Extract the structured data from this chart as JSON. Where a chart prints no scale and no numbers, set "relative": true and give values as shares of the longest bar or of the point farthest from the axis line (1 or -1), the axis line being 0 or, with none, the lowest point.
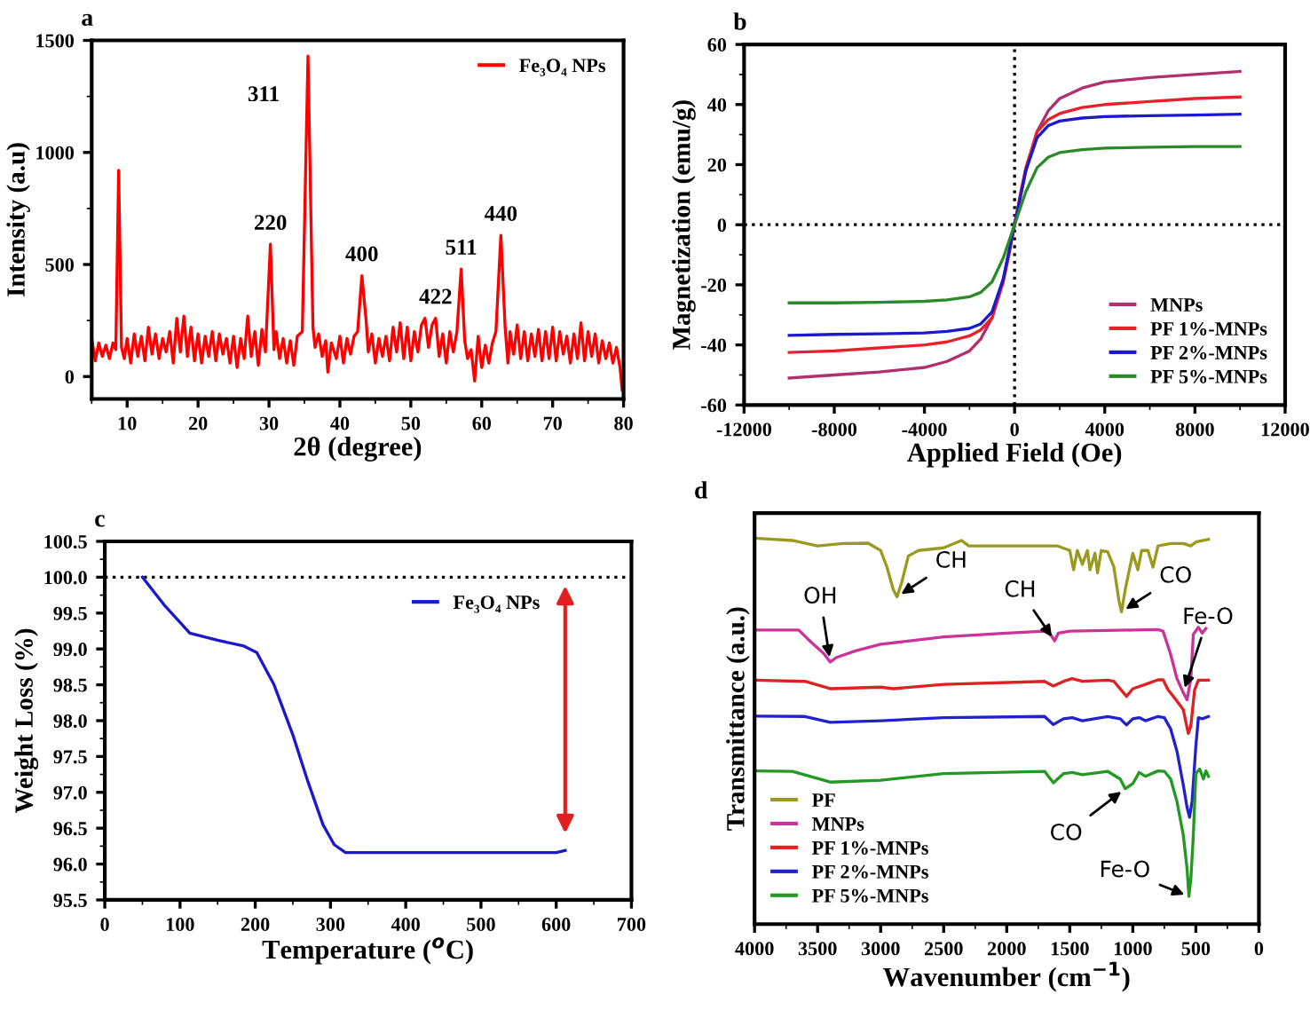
{
  "chart_data": [
    {
      "type": "line",
      "title": "a",
      "xlabel": "2θ (degree)",
      "ylabel": "Intensity (a.u)",
      "xlim": [
        5,
        80
      ],
      "xticks": [
        10,
        20,
        30,
        40,
        50,
        60,
        70,
        80
      ],
      "ylim": [
        -100,
        1500
      ],
      "yticks": [
        0,
        500,
        1000,
        1500
      ],
      "legend": "top right",
      "grid": false,
      "series": [
        {
          "name": "Fe₃O₄ NPs",
          "color": "#ff0000",
          "x": [
            5,
            5.5,
            6,
            6.5,
            7,
            7.5,
            8,
            8.4,
            8.8,
            9.2,
            9.6,
            10,
            10.5,
            11,
            11.5,
            12,
            12.5,
            13,
            13.5,
            14,
            14.5,
            15,
            15.5,
            16,
            16.5,
            17,
            17.5,
            18,
            18.5,
            19,
            19.5,
            20,
            20.5,
            21,
            21.5,
            22,
            22.5,
            23,
            23.5,
            24,
            24.5,
            25,
            25.5,
            26,
            26.5,
            27,
            27.5,
            28,
            28.5,
            29,
            29.5,
            30.2,
            30.7,
            31,
            31.5,
            32,
            32.5,
            33,
            33.5,
            34,
            34.7,
            35.5,
            36.2,
            36.5,
            37,
            37.5,
            38,
            38.3,
            38.8,
            39.5,
            40,
            40.5,
            41,
            41.5,
            42,
            42.5,
            43.1,
            43.7,
            44,
            44.5,
            45,
            45.5,
            46,
            46.5,
            47,
            47.5,
            48,
            48.5,
            49,
            49.5,
            50,
            50.5,
            51,
            51.5,
            52,
            52.5,
            53,
            53.5,
            54,
            54.5,
            55,
            55.5,
            56,
            56.5,
            57.1,
            57.6,
            58,
            58.5,
            59,
            59.5,
            60,
            60.5,
            61,
            61.5,
            62,
            62.7,
            63.3,
            63.7,
            64,
            64.5,
            65,
            65.5,
            66,
            66.5,
            67,
            67.5,
            68,
            68.5,
            69,
            69.5,
            70,
            70.5,
            71,
            71.5,
            72,
            72.5,
            73,
            73.5,
            74,
            74.5,
            75,
            75.5,
            76,
            76.5,
            77,
            77.5,
            78,
            78.5,
            79,
            79.5,
            79.8
          ],
          "values": [
            170,
            70,
            150,
            90,
            140,
            80,
            150,
            120,
            920,
            130,
            80,
            170,
            60,
            190,
            90,
            180,
            70,
            220,
            100,
            190,
            80,
            170,
            110,
            200,
            60,
            260,
            110,
            270,
            90,
            220,
            70,
            190,
            60,
            180,
            90,
            200,
            70,
            190,
            100,
            170,
            60,
            180,
            40,
            170,
            80,
            270,
            90,
            200,
            50,
            210,
            110,
            590,
            120,
            200,
            80,
            170,
            60,
            160,
            50,
            180,
            200,
            1430,
            220,
            130,
            190,
            90,
            160,
            20,
            150,
            80,
            180,
            60,
            170,
            100,
            180,
            200,
            450,
            250,
            110,
            190,
            60,
            170,
            90,
            180,
            70,
            220,
            110,
            240,
            80,
            220,
            70,
            200,
            110,
            230,
            260,
            130,
            230,
            260,
            90,
            190,
            60,
            200,
            110,
            200,
            480,
            160,
            80,
            120,
            -20,
            180,
            40,
            140,
            60,
            150,
            200,
            630,
            220,
            60,
            200,
            100,
            230,
            80,
            200,
            70,
            190,
            90,
            210,
            70,
            200,
            80,
            220,
            70,
            200,
            100,
            180,
            60,
            190,
            80,
            240,
            70,
            200,
            90,
            190,
            60,
            160,
            80,
            150,
            60,
            130,
            40,
            -60
          ]
        }
      ],
      "annotations": [
        {
          "text": "220",
          "x": 30.2,
          "y": 590
        },
        {
          "text": "311",
          "x": 35.5,
          "y": 1430
        },
        {
          "text": "400",
          "x": 43.1,
          "y": 450
        },
        {
          "text": "422",
          "x": 53.5,
          "y": 260
        },
        {
          "text": "511",
          "x": 57.1,
          "y": 480
        },
        {
          "text": "440",
          "x": 62.7,
          "y": 630
        }
      ]
    },
    {
      "type": "line",
      "title": "b",
      "xlabel": "Applied Field (Oe)",
      "ylabel": "Magnetization (emu/g)",
      "xlim": [
        -12000,
        12000
      ],
      "xticks": [
        -12000,
        -8000,
        -4000,
        0,
        4000,
        8000,
        12000
      ],
      "ylim": [
        -60,
        60
      ],
      "yticks": [
        -60,
        -40,
        -20,
        0,
        20,
        40,
        60
      ],
      "legend": "bottom right",
      "grid": false,
      "ref_lines": [
        {
          "axis": "x",
          "value": 0,
          "color": "#000000",
          "line_style": "dotted"
        },
        {
          "axis": "y",
          "value": 0,
          "color": "#000000",
          "line_style": "dotted"
        }
      ],
      "series": [
        {
          "name": "MNPs",
          "color": "#b0306e",
          "x": [
            -10000,
            -8000,
            -6000,
            -4000,
            -3000,
            -2000,
            -1500,
            -1000,
            -500,
            -250,
            0,
            250,
            500,
            1000,
            1500,
            2000,
            3000,
            4000,
            6000,
            8000,
            10000
          ],
          "values": [
            -51,
            -50,
            -49,
            -47.5,
            -45.5,
            -42,
            -38,
            -31,
            -18,
            -9,
            0,
            9,
            18,
            31,
            38,
            42,
            45.5,
            47.5,
            49,
            50,
            51
          ]
        },
        {
          "name": "PF 1%-MNPs",
          "color": "#e8202a",
          "x": [
            -10000,
            -8000,
            -6000,
            -4000,
            -3000,
            -2000,
            -1500,
            -1000,
            -500,
            -250,
            0,
            250,
            500,
            1000,
            1500,
            2000,
            3000,
            4000,
            6000,
            8000,
            10000
          ],
          "values": [
            -42.5,
            -42,
            -41,
            -40,
            -39,
            -37,
            -35,
            -31,
            -19,
            -10,
            0,
            10,
            19,
            31,
            35,
            37,
            39,
            40,
            41,
            42,
            42.5
          ]
        },
        {
          "name": "PF 2%-MNPs",
          "color": "#1a1acc",
          "x": [
            -10000,
            -8000,
            -6000,
            -4000,
            -3000,
            -2000,
            -1500,
            -1000,
            -500,
            -250,
            0,
            250,
            500,
            1000,
            1500,
            2000,
            3000,
            4000,
            6000,
            8000,
            10000
          ],
          "values": [
            -36.8,
            -36.5,
            -36.3,
            -36,
            -35.5,
            -34.5,
            -33,
            -29,
            -18,
            -9,
            0,
            9,
            18,
            29,
            33,
            34.5,
            35.5,
            36,
            36.3,
            36.5,
            36.8
          ]
        },
        {
          "name": "PF 5%-MNPs",
          "color": "#2a8a2a",
          "x": [
            -10000,
            -8000,
            -6000,
            -4000,
            -3000,
            -2000,
            -1500,
            -1000,
            -500,
            -250,
            0,
            250,
            500,
            1000,
            1500,
            2000,
            3000,
            4000,
            6000,
            8000,
            10000
          ],
          "values": [
            -26,
            -26,
            -25.8,
            -25.5,
            -25,
            -24,
            -22.5,
            -19,
            -11,
            -5.5,
            0,
            5.5,
            11,
            19,
            22.5,
            24,
            25,
            25.5,
            25.8,
            26,
            26
          ]
        }
      ]
    },
    {
      "type": "line",
      "title": "c",
      "xlabel": "Temperature ($^{o}$C)",
      "ylabel": "Weight Loss (%)",
      "xlim": [
        0,
        700
      ],
      "xticks": [
        0,
        100,
        200,
        300,
        400,
        500,
        600,
        700
      ],
      "ylim": [
        95.5,
        100.5
      ],
      "yticks": [
        {
          "value": 95.5,
          "label": "95.5"
        },
        {
          "value": 96,
          "label": "96.0"
        },
        {
          "value": 96.5,
          "label": "96.5"
        },
        {
          "value": 97,
          "label": "97.0"
        },
        {
          "value": 97.5,
          "label": "97.5"
        },
        {
          "value": 98,
          "label": "98.0"
        },
        {
          "value": 98.5,
          "label": "98.5"
        },
        {
          "value": 99,
          "label": "99.0"
        },
        {
          "value": 99.5,
          "label": "99.5"
        },
        {
          "value": 100,
          "label": "100.0"
        },
        {
          "value": 100.5,
          "label": "100.5"
        }
      ],
      "legend": "top right",
      "grid": false,
      "ref_lines": [
        {
          "axis": "y",
          "value": 100,
          "color": "#000000",
          "line_style": "dotted"
        }
      ],
      "series": [
        {
          "name": "Fe₃O₄ NPs",
          "color": "#1a1acc",
          "x": [
            50,
            80,
            113,
            150,
            185,
            202,
            225,
            250,
            270,
            290,
            305,
            320,
            400,
            500,
            600,
            612
          ],
          "values": [
            100,
            99.6,
            99.22,
            99.12,
            99.04,
            98.95,
            98.5,
            97.8,
            97.15,
            96.55,
            96.27,
            96.16,
            96.16,
            96.16,
            96.16,
            96.19
          ]
        }
      ]
    },
    {
      "type": "line",
      "title": "d",
      "xlabel": "Wavenumber (cm$^{−1}$)",
      "ylabel": "Transmittance (a.u.)",
      "relative": true,
      "xlim": [
        4000,
        0
      ],
      "xticks": [
        4000,
        3500,
        3000,
        2500,
        2000,
        1500,
        1000,
        500,
        0
      ],
      "tick_labels": "x",
      "legend": "bottom left",
      "grid": false,
      "series": [
        {
          "name": "PF",
          "color": "#9a9a20",
          "x": [
            4000,
            3700,
            3500,
            3300,
            3100,
            3000,
            2950,
            2900,
            2870,
            2830,
            2780,
            2700,
            2500,
            2360,
            2300,
            2000,
            1700,
            1600,
            1500,
            1470,
            1440,
            1400,
            1360,
            1340,
            1300,
            1280,
            1250,
            1200,
            1150,
            1110,
            1090,
            1060,
            1000,
            960,
            930,
            880,
            840,
            800,
            700,
            600,
            540,
            500,
            400
          ],
          "values": [
            1.0,
            0.994,
            0.98,
            0.986,
            0.987,
            0.968,
            0.925,
            0.867,
            0.848,
            0.889,
            0.954,
            0.968,
            0.975,
            0.994,
            0.98,
            0.98,
            0.98,
            0.98,
            0.968,
            0.918,
            0.968,
            0.932,
            0.968,
            0.918,
            0.961,
            0.91,
            0.968,
            0.965,
            0.925,
            0.838,
            0.809,
            0.867,
            0.961,
            0.918,
            0.968,
            0.968,
            0.925,
            0.98,
            0.986,
            0.986,
            0.98,
            0.99,
            0.997
          ]
        },
        {
          "name": "MNPs",
          "color": "#cc3399",
          "x": [
            4000,
            3650,
            3550,
            3450,
            3400,
            3350,
            3200,
            3000,
            2500,
            2000,
            1700,
            1650,
            1620,
            1590,
            1500,
            1000,
            800,
            760,
            700,
            650,
            600,
            570,
            540,
            520,
            480,
            450,
            420
          ],
          "values": [
            0.762,
            0.762,
            0.73,
            0.701,
            0.679,
            0.691,
            0.708,
            0.725,
            0.744,
            0.754,
            0.759,
            0.749,
            0.734,
            0.754,
            0.759,
            0.762,
            0.763,
            0.759,
            0.699,
            0.636,
            0.6,
            0.581,
            0.636,
            0.751,
            0.769,
            0.754,
            0.766
          ]
        },
        {
          "name": "PF 1%-MNPs",
          "color": "#dd2222",
          "x": [
            4000,
            3600,
            3400,
            3000,
            2900,
            2500,
            1700,
            1630,
            1550,
            1480,
            1400,
            1200,
            1150,
            1050,
            1000,
            900,
            800,
            760,
            720,
            650,
            600,
            560,
            540,
            510,
            480,
            400
          ],
          "values": [
            0.632,
            0.629,
            0.61,
            0.614,
            0.61,
            0.621,
            0.629,
            0.617,
            0.629,
            0.636,
            0.629,
            0.632,
            0.629,
            0.59,
            0.61,
            0.621,
            0.633,
            0.633,
            0.607,
            0.578,
            0.556,
            0.494,
            0.513,
            0.607,
            0.632,
            0.632
          ]
        },
        {
          "name": "PF 2%-MNPs",
          "color": "#2222cc",
          "x": [
            4000,
            3600,
            3400,
            3000,
            2500,
            1700,
            1630,
            1550,
            1480,
            1400,
            1200,
            1100,
            1050,
            1000,
            950,
            900,
            800,
            750,
            700,
            650,
            600,
            570,
            550,
            530,
            500,
            480,
            450,
            400
          ],
          "values": [
            0.539,
            0.538,
            0.523,
            0.527,
            0.535,
            0.538,
            0.517,
            0.532,
            0.535,
            0.527,
            0.538,
            0.532,
            0.516,
            0.532,
            0.535,
            0.527,
            0.538,
            0.535,
            0.506,
            0.448,
            0.361,
            0.303,
            0.277,
            0.318,
            0.462,
            0.535,
            0.532,
            0.538
          ]
        },
        {
          "name": "PF 5%-MNPs",
          "color": "#229922",
          "x": [
            4000,
            3700,
            3400,
            3000,
            2500,
            1700,
            1630,
            1550,
            1480,
            1400,
            1200,
            1100,
            1060,
            1000,
            950,
            900,
            800,
            750,
            700,
            650,
            600,
            570,
            555,
            540,
            520,
            500,
            470,
            440,
            420,
            400
          ],
          "values": [
            0.397,
            0.396,
            0.368,
            0.373,
            0.39,
            0.396,
            0.366,
            0.39,
            0.393,
            0.387,
            0.396,
            0.376,
            0.351,
            0.364,
            0.393,
            0.383,
            0.397,
            0.396,
            0.376,
            0.318,
            0.231,
            0.145,
            0.072,
            0.116,
            0.231,
            0.39,
            0.402,
            0.376,
            0.397,
            0.383
          ]
        }
      ],
      "annotations": [
        {
          "text": "CH",
          "x": 2870,
          "y": 0.848
        },
        {
          "text": "CO",
          "x": 1090,
          "y": 0.809
        },
        {
          "text": "OH",
          "x": 3400,
          "y": 0.679
        },
        {
          "text": "CH",
          "x": 1620,
          "y": 0.734
        },
        {
          "text": "Fe-O",
          "x": 600,
          "y": 0.6
        },
        {
          "text": "CO",
          "x": 1060,
          "y": 0.351
        },
        {
          "text": "Fe-O",
          "x": 555,
          "y": 0.072
        }
      ]
    }
  ]
}
